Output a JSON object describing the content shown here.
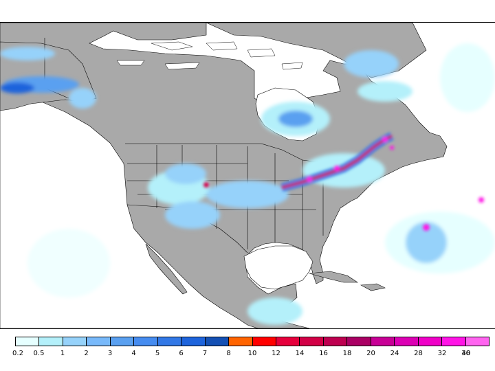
{
  "map": {
    "land_color": "#a9a9a9",
    "ocean_color": "#ffffff",
    "border_color": "#000000"
  },
  "legend": {
    "colors": [
      "#e6ffff",
      "#b4f0fa",
      "#96d2fa",
      "#78b9fa",
      "#5aa0f0",
      "#468cf0",
      "#3278e6",
      "#1e64dc",
      "#1450b4",
      "#ff6400",
      "#ff0000",
      "#e6003c",
      "#d20046",
      "#be0050",
      "#aa0064",
      "#c80096",
      "#dc00b4",
      "#f000c8",
      "#ff14e6",
      "#ff64f0"
    ],
    "labels": [
      "0.2",
      "0.5",
      "1",
      "2",
      "3",
      "4",
      "5",
      "6",
      "7",
      "8",
      "10",
      "12",
      "14",
      "16",
      "18",
      "20",
      "24",
      "28",
      "32",
      "36",
      "40"
    ]
  }
}
